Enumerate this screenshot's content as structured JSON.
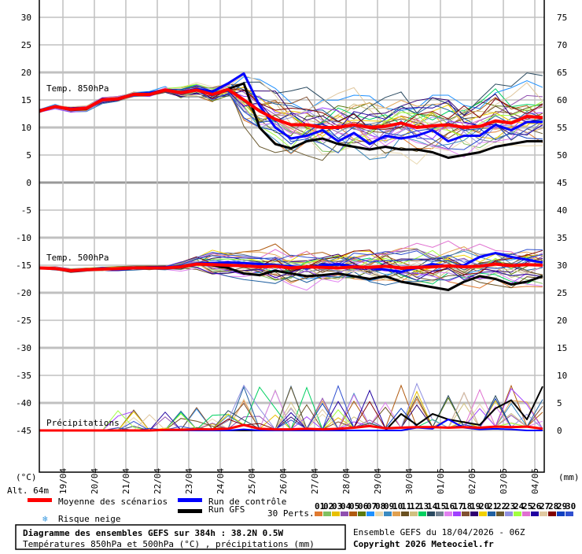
{
  "chart_data": {
    "type": "line",
    "title": "Diagramme des ensembles GEFS sur 384h : 38.2N 0.5W",
    "subtitle": "Températures 850hPa et 500hPa (°C) , précipitations (mm)",
    "run_info": "Ensemble GEFS du 18/04/2026 - 06Z",
    "copyright": "Copyright 2026 Meteociel.fr",
    "altitude": "Alt. 64m",
    "left_unit": "(°C)",
    "right_unit": "(mm)",
    "x_hours": [
      0,
      12,
      24,
      36,
      48,
      60,
      72,
      84,
      96,
      108,
      120,
      132,
      144,
      156,
      168,
      180,
      192,
      204,
      216,
      228,
      240,
      252,
      264,
      276,
      288,
      300,
      312,
      324,
      336,
      348,
      360,
      372,
      384
    ],
    "x_tick_labels": [
      "19/04",
      "20/04",
      "21/04",
      "22/04",
      "23/04",
      "24/04",
      "25/04",
      "26/04",
      "27/04",
      "28/04",
      "29/04",
      "30/04",
      "01/05",
      "02/05",
      "03/05",
      "04/05"
    ],
    "left_ticks": [
      "30",
      "25",
      "20",
      "15",
      "10",
      "5",
      "0",
      "-5",
      "-10",
      "-15",
      "-20",
      "-25",
      "-30",
      "-35",
      "-40",
      "-45"
    ],
    "left_tick_values": [
      30,
      25,
      20,
      15,
      10,
      5,
      0,
      -5,
      -10,
      -15,
      -20,
      -25,
      -30,
      -35,
      -40,
      -45
    ],
    "right_ticks": [
      "75",
      "70",
      "65",
      "60",
      "55",
      "50",
      "45",
      "40",
      "35",
      "30",
      "25",
      "20",
      "15",
      "10",
      "5",
      "0"
    ],
    "panel_labels": {
      "t850": "Temp. 850hPa",
      "t500": "Temp. 500hPa",
      "precip": "Précipitations"
    },
    "series": [
      {
        "name": "Moyenne des scénarios",
        "color": "#ff0000",
        "t850": [
          13,
          13.8,
          13.3,
          13.5,
          15,
          15.2,
          16,
          16,
          16.8,
          16.3,
          16.8,
          16,
          16.9,
          15,
          13,
          11.5,
          10.5,
          10.5,
          10,
          10,
          10.5,
          10,
          10.2,
          10.8,
          10,
          10.3,
          10.5,
          10,
          10.2,
          11.2,
          10.8,
          12,
          11.8
        ],
        "t500": [
          -15.5,
          -15.6,
          -16,
          -15.8,
          -15.7,
          -15.6,
          -15.5,
          -15.5,
          -15.5,
          -15.3,
          -14.8,
          -14.9,
          -15,
          -15.1,
          -15.3,
          -15.2,
          -15.5,
          -15.3,
          -15.4,
          -15.5,
          -15.3,
          -15.4,
          -15.2,
          -15.5,
          -15.4,
          -15.3,
          -15.1,
          -15.3,
          -15.2,
          -14.8,
          -15.1,
          -14.9,
          -15
        ],
        "precip": [
          0,
          0,
          0,
          0,
          0,
          0,
          0,
          0,
          0.1,
          0.1,
          0.2,
          0.2,
          0.3,
          1,
          0.3,
          0.2,
          0.2,
          0.3,
          0.2,
          0.3,
          0.5,
          0.8,
          0.4,
          0.5,
          0.6,
          0.6,
          0.5,
          0.6,
          0.5,
          0.7,
          0.6,
          0.7,
          0.3
        ]
      },
      {
        "name": "Run de contrôle",
        "color": "#0000ff",
        "t850": [
          13,
          13.8,
          13.4,
          13.5,
          15,
          15.2,
          16,
          16.2,
          16.8,
          16.4,
          17,
          16.5,
          18,
          19.8,
          14,
          10,
          8,
          8.5,
          9.5,
          7.5,
          9,
          7,
          8.5,
          8,
          8.5,
          9.5,
          7.5,
          8.5,
          8.5,
          10.5,
          9.5,
          11,
          11
        ],
        "t500": [
          -15.5,
          -15.6,
          -16,
          -15.8,
          -15.7,
          -15.6,
          -15.5,
          -15.4,
          -15.4,
          -15.2,
          -14.7,
          -14.6,
          -14.5,
          -14.6,
          -14.8,
          -15,
          -15.2,
          -15.5,
          -15,
          -14.8,
          -15.2,
          -15.5,
          -15.8,
          -16.2,
          -15.5,
          -14.8,
          -15.2,
          -15,
          -13.5,
          -12.8,
          -13.5,
          -14,
          -14.5
        ],
        "precip": [
          0,
          0,
          0,
          0,
          0,
          0,
          0,
          0,
          0,
          0,
          0,
          0,
          0,
          0.2,
          0,
          0,
          0,
          0,
          0,
          0,
          0,
          0,
          0,
          0,
          0.5,
          0.3,
          2,
          0.5,
          0.2,
          0.3,
          0.2,
          0,
          0
        ]
      },
      {
        "name": "Run GFS",
        "color": "#000000",
        "t850": [
          13,
          13.8,
          13.3,
          13.5,
          15,
          15.2,
          16,
          16,
          16.8,
          16.3,
          16.8,
          16,
          17,
          18,
          10,
          7,
          6.2,
          7.5,
          8,
          7,
          6.5,
          6,
          6.5,
          6,
          6,
          5.5,
          4.5,
          5,
          5.5,
          6.5,
          7,
          7.5,
          7.5
        ],
        "t500": [
          -15.5,
          -15.6,
          -16,
          -15.8,
          -15.7,
          -15.6,
          -15.5,
          -15.4,
          -15.4,
          -15.3,
          -14.8,
          -15,
          -15.5,
          -16.5,
          -16.8,
          -16,
          -16.5,
          -17,
          -16.8,
          -16.5,
          -17,
          -17.5,
          -17,
          -18,
          -18.5,
          -19,
          -19.5,
          -18,
          -17,
          -17.5,
          -18.5,
          -18,
          -17
        ],
        "precip": [
          0,
          0,
          0,
          0,
          0,
          0,
          0,
          0,
          0,
          0,
          0,
          0,
          0,
          0,
          0,
          0,
          0,
          0,
          0,
          0,
          0,
          0,
          0,
          3,
          1,
          3,
          2,
          1.5,
          1,
          4,
          5.5,
          2,
          8
        ]
      }
    ],
    "legend": {
      "mean": "Moyenne des scénarios",
      "control": "Run de contrôle",
      "gfs": "Run GFS",
      "snow": "Risque neige",
      "perts": "30 Perts."
    },
    "perturbations": {
      "labels": [
        "01",
        "02",
        "03",
        "04",
        "05",
        "06",
        "07",
        "08",
        "09",
        "10",
        "11",
        "12",
        "13",
        "14",
        "15",
        "16",
        "17",
        "18",
        "19",
        "20",
        "21",
        "22",
        "23",
        "24",
        "25",
        "26",
        "27",
        "28",
        "29",
        "30"
      ],
      "colors": [
        "#e07a30",
        "#80c060",
        "#e8c000",
        "#9050b0",
        "#b05a10",
        "#5a7a10",
        "#1e90ff",
        "#e8d8b0",
        "#3a8ac0",
        "#e0a050",
        "#6a5020",
        "#d0c080",
        "#00d060",
        "#2a4a60",
        "#708090",
        "#e080f0",
        "#a040ff",
        "#805030",
        "#300070",
        "#f0d000",
        "#2060a0",
        "#6a5a30",
        "#9090e0",
        "#a0ff40",
        "#e070d0",
        "#2000a0",
        "#e0c8a0",
        "#800000",
        "#1040c0",
        "#3050d0"
      ]
    },
    "xlim_hours": [
      0,
      384
    ],
    "ylim_left": [
      -45,
      30
    ],
    "ylim_right_mm": [
      0,
      75
    ]
  }
}
